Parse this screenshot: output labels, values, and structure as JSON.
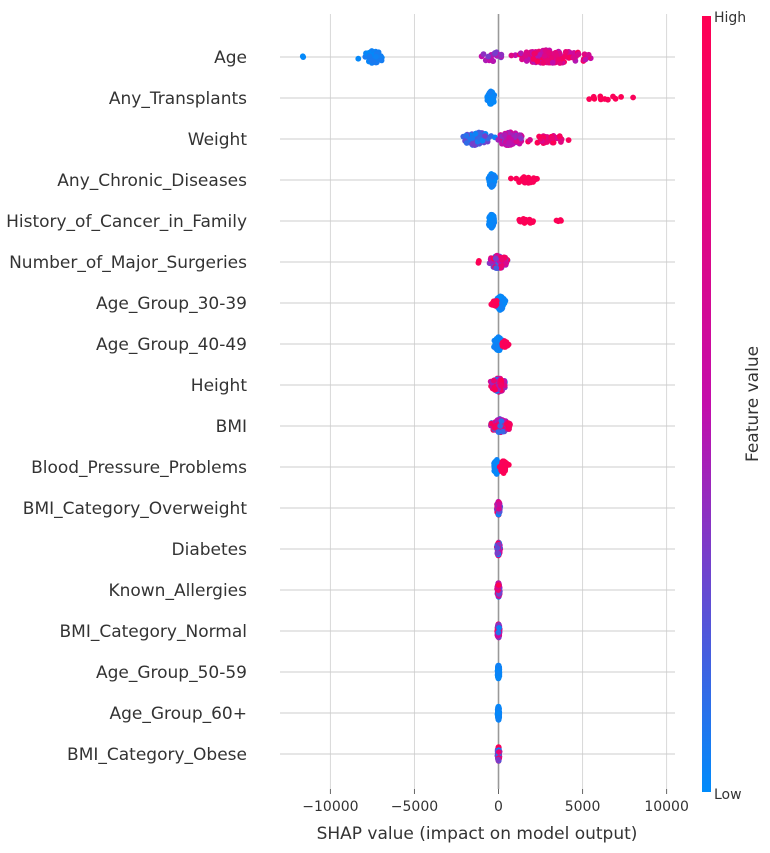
{
  "chart_data": {
    "type": "scatter",
    "subtype": "shap-beeswarm",
    "xlabel": "SHAP value (impact on model output)",
    "xlim": [
      -13000,
      10500
    ],
    "xticks": [
      -10000,
      -5000,
      0,
      5000,
      10000
    ],
    "xtick_labels": [
      "−10000",
      "−5000",
      "0",
      "5000",
      "10000"
    ],
    "grid": "horizontal per feature",
    "colorbar": {
      "label": "Feature value",
      "high_label": "High",
      "low_label": "Low",
      "low_color": "#008bfb",
      "mid_color": "#c40cab",
      "high_color": "#ff0052"
    },
    "features": [
      {
        "name": "Age",
        "clusters": [
          {
            "center": -7500,
            "spread": 2200,
            "count": 60,
            "jitter": 0.7,
            "fv": [
              0.0,
              0.08
            ]
          },
          {
            "center": -11700,
            "spread": 400,
            "count": 2,
            "jitter": 0.2,
            "fv": [
              0.0,
              0.03
            ]
          },
          {
            "center": 3000,
            "spread": 6200,
            "count": 140,
            "jitter": 0.8,
            "fv": [
              0.45,
              1.0
            ]
          },
          {
            "center": -300,
            "spread": 2000,
            "count": 20,
            "jitter": 0.6,
            "fv": [
              0.25,
              0.55
            ]
          }
        ]
      },
      {
        "name": "Any_Transplants",
        "clusters": [
          {
            "center": -450,
            "spread": 500,
            "count": 90,
            "jitter": 0.8,
            "fv": [
              0.0,
              0.05
            ]
          },
          {
            "center": 6300,
            "spread": 6200,
            "count": 12,
            "jitter": 0.2,
            "fv": [
              0.95,
              1.0
            ]
          }
        ]
      },
      {
        "name": "Weight",
        "clusters": [
          {
            "center": -1300,
            "spread": 2600,
            "count": 60,
            "jitter": 0.8,
            "fv": [
              0.0,
              0.3
            ]
          },
          {
            "center": 700,
            "spread": 2000,
            "count": 80,
            "jitter": 0.8,
            "fv": [
              0.3,
              0.7
            ]
          },
          {
            "center": 2800,
            "spread": 3800,
            "count": 35,
            "jitter": 0.5,
            "fv": [
              0.65,
              1.0
            ]
          }
        ]
      },
      {
        "name": "Any_Chronic_Diseases",
        "clusters": [
          {
            "center": -400,
            "spread": 500,
            "count": 80,
            "jitter": 0.8,
            "fv": [
              0.0,
              0.05
            ]
          },
          {
            "center": 1600,
            "spread": 2400,
            "count": 30,
            "jitter": 0.35,
            "fv": [
              0.95,
              1.0
            ]
          }
        ]
      },
      {
        "name": "History_of_Cancer_in_Family",
        "clusters": [
          {
            "center": -400,
            "spread": 500,
            "count": 80,
            "jitter": 0.8,
            "fv": [
              0.0,
              0.05
            ]
          },
          {
            "center": 1600,
            "spread": 1400,
            "count": 15,
            "jitter": 0.3,
            "fv": [
              0.95,
              1.0
            ]
          },
          {
            "center": 3600,
            "spread": 500,
            "count": 4,
            "jitter": 0.3,
            "fv": [
              0.95,
              1.0
            ]
          }
        ]
      },
      {
        "name": "Number_of_Major_Surgeries",
        "clusters": [
          {
            "center": 0,
            "spread": 1300,
            "count": 110,
            "jitter": 0.8,
            "fv": [
              0.0,
              1.0
            ]
          },
          {
            "center": -1100,
            "spread": 300,
            "count": 2,
            "jitter": 0.2,
            "fv": [
              0.95,
              1.0
            ]
          }
        ]
      },
      {
        "name": "Age_Group_30-39",
        "clusters": [
          {
            "center": 100,
            "spread": 700,
            "count": 90,
            "jitter": 0.8,
            "fv": [
              0.0,
              0.05
            ]
          },
          {
            "center": -250,
            "spread": 500,
            "count": 15,
            "jitter": 0.4,
            "fv": [
              0.95,
              1.0
            ]
          }
        ]
      },
      {
        "name": "Age_Group_40-49",
        "clusters": [
          {
            "center": 0,
            "spread": 700,
            "count": 90,
            "jitter": 0.8,
            "fv": [
              0.0,
              0.05
            ]
          },
          {
            "center": 400,
            "spread": 500,
            "count": 18,
            "jitter": 0.4,
            "fv": [
              0.95,
              1.0
            ]
          }
        ]
      },
      {
        "name": "Height",
        "clusters": [
          {
            "center": 0,
            "spread": 1200,
            "count": 110,
            "jitter": 0.8,
            "fv": [
              0.0,
              1.0
            ]
          }
        ]
      },
      {
        "name": "BMI",
        "clusters": [
          {
            "center": 100,
            "spread": 1400,
            "count": 110,
            "jitter": 0.8,
            "fv": [
              0.0,
              1.0
            ]
          },
          {
            "center": 600,
            "spread": 400,
            "count": 6,
            "jitter": 0.4,
            "fv": [
              0.9,
              1.0
            ]
          }
        ]
      },
      {
        "name": "Blood_Pressure_Problems",
        "clusters": [
          {
            "center": -100,
            "spread": 500,
            "count": 70,
            "jitter": 0.8,
            "fv": [
              0.0,
              0.05
            ]
          },
          {
            "center": 300,
            "spread": 700,
            "count": 45,
            "jitter": 0.7,
            "fv": [
              0.95,
              1.0
            ]
          }
        ]
      },
      {
        "name": "BMI_Category_Overweight",
        "clusters": [
          {
            "center": 0,
            "spread": 250,
            "count": 110,
            "jitter": 0.8,
            "fv": [
              0.0,
              1.0
            ]
          }
        ]
      },
      {
        "name": "Diabetes",
        "clusters": [
          {
            "center": 0,
            "spread": 220,
            "count": 110,
            "jitter": 0.8,
            "fv": [
              0.0,
              1.0
            ]
          }
        ]
      },
      {
        "name": "Known_Allergies",
        "clusters": [
          {
            "center": 0,
            "spread": 200,
            "count": 110,
            "jitter": 0.8,
            "fv": [
              0.0,
              1.0
            ]
          }
        ]
      },
      {
        "name": "BMI_Category_Normal",
        "clusters": [
          {
            "center": 0,
            "spread": 200,
            "count": 110,
            "jitter": 0.8,
            "fv": [
              0.0,
              1.0
            ]
          }
        ]
      },
      {
        "name": "Age_Group_50-59",
        "clusters": [
          {
            "center": 0,
            "spread": 150,
            "count": 110,
            "jitter": 0.8,
            "fv": [
              0.0,
              0.05
            ]
          }
        ]
      },
      {
        "name": "Age_Group_60+",
        "clusters": [
          {
            "center": 0,
            "spread": 150,
            "count": 110,
            "jitter": 0.8,
            "fv": [
              0.0,
              0.05
            ]
          }
        ]
      },
      {
        "name": "BMI_Category_Obese",
        "clusters": [
          {
            "center": 0,
            "spread": 150,
            "count": 110,
            "jitter": 0.8,
            "fv": [
              0.0,
              1.0
            ]
          }
        ]
      }
    ]
  }
}
